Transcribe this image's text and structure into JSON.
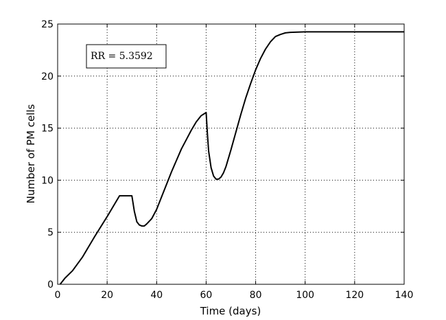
{
  "chart_data": {
    "type": "line",
    "title": "",
    "xlabel": "Time (days)",
    "ylabel": "Number of PM cells",
    "xlim": [
      0,
      140
    ],
    "ylim": [
      0,
      25
    ],
    "xticks": [
      0,
      20,
      40,
      60,
      80,
      100,
      120,
      140
    ],
    "yticks": [
      0,
      5,
      10,
      15,
      20,
      25
    ],
    "grid": true,
    "annotation": "RR = 5.3592",
    "series": [
      {
        "x": [
          1,
          3,
          6,
          10,
          15,
          20,
          25,
          30,
          31,
          32,
          33,
          34,
          35,
          36,
          38,
          40,
          42,
          44,
          46,
          48,
          50,
          52,
          54,
          56,
          58,
          60,
          60.5,
          61,
          62,
          63,
          64,
          65,
          66,
          67,
          68,
          70,
          72,
          74,
          76,
          78,
          80,
          82,
          84,
          86,
          88,
          90,
          92,
          94,
          96,
          98,
          100,
          110,
          120,
          130,
          140
        ],
        "y": [
          0,
          0.6,
          1.3,
          2.6,
          4.6,
          6.5,
          8.5,
          8.5,
          7.0,
          6.0,
          5.7,
          5.6,
          5.6,
          5.8,
          6.3,
          7.2,
          8.4,
          9.6,
          10.8,
          11.9,
          13.0,
          13.9,
          14.8,
          15.6,
          16.2,
          16.5,
          14.5,
          12.8,
          11.2,
          10.4,
          10.1,
          10.1,
          10.3,
          10.7,
          11.3,
          12.9,
          14.6,
          16.3,
          17.9,
          19.3,
          20.6,
          21.7,
          22.6,
          23.3,
          23.8,
          24.0,
          24.15,
          24.2,
          24.22,
          24.23,
          24.25,
          24.25,
          24.25,
          24.25,
          24.25
        ]
      }
    ]
  }
}
